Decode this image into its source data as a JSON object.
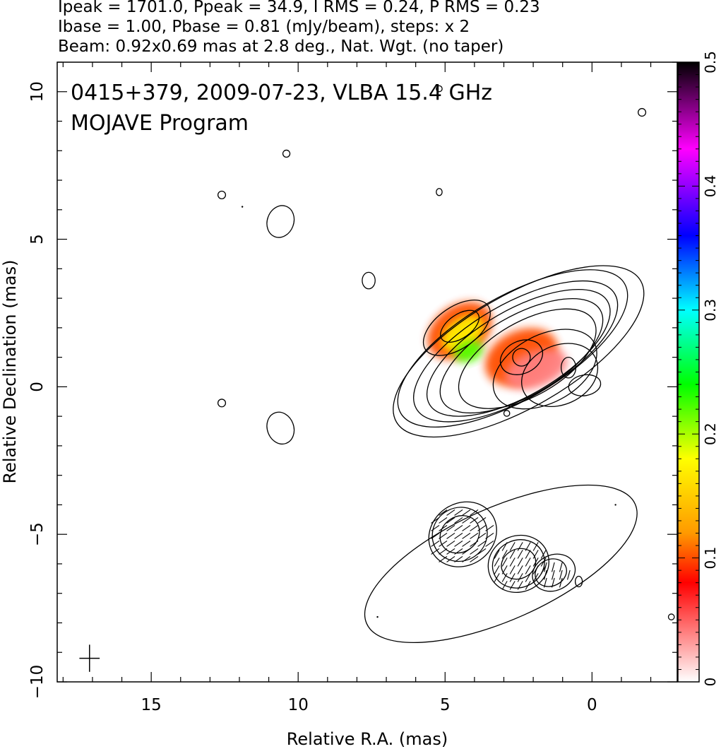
{
  "header": {
    "line1": "Ipeak = 1701.0, Ppeak = 34.9, I RMS = 0.24, P RMS = 0.23",
    "line2": "Ibase = 1.00, Pbase = 0.81 (mJy/beam), steps: x 2",
    "line3": "Beam: 0.92x0.69 mas at 2.8 deg., Nat. Wgt. (no taper)"
  },
  "chart_data": {
    "type": "contour",
    "title": "0415+379, 2009-07-23, VLBA 15.4 GHz",
    "subtitle": "MOJAVE Program",
    "xlabel": "Relative R.A. (mas)",
    "ylabel": "Relative Declination (mas)",
    "xlim": [
      18.2,
      -2.9
    ],
    "ylim": [
      -10,
      11
    ],
    "x_reversed": true,
    "x_major_ticks": [
      15,
      10,
      5,
      0
    ],
    "y_major_ticks": [
      -10,
      -5,
      0,
      5,
      10
    ],
    "x_tick_labels": [
      "15",
      "10",
      "5",
      "0"
    ],
    "y_tick_labels": [
      "−10",
      "−5",
      "0",
      "5",
      "10"
    ],
    "grid": false,
    "beam": {
      "major_mas": 0.92,
      "minor_mas": 0.69,
      "pa_deg": 2.8,
      "center": [
        17.1,
        -9.2
      ]
    },
    "colorbar": {
      "range": [
        0,
        0.5
      ],
      "ticks": [
        0,
        0.1,
        0.2,
        0.3,
        0.4,
        0.5
      ],
      "tick_labels": [
        "0",
        "0.1",
        "0.2",
        "0.3",
        "0.4",
        "0.5"
      ],
      "colors": [
        "#ffffff",
        "#ff0000",
        "#ff9900",
        "#ffff00",
        "#00ff00",
        "#00ffff",
        "#0000ff",
        "#ff00ff",
        "#000000"
      ],
      "color_stops": [
        0,
        0.16,
        0.24,
        0.36,
        0.48,
        0.6,
        0.72,
        0.86,
        1
      ]
    },
    "panels": [
      {
        "name": "total-intensity",
        "core": [
          0.2,
          0.0
        ],
        "components": [
          {
            "center": [
              2.4,
              1.0
            ],
            "angle_deg": -32
          },
          {
            "center": [
              4.6,
              2.0
            ],
            "angle_deg": -35
          }
        ],
        "contours": [
          {
            "center": [
              2.5,
              1.2
            ],
            "rx": 4.8,
            "ry": 1.9,
            "angle_deg": -30
          },
          {
            "center": [
              2.7,
              1.3
            ],
            "rx": 4.4,
            "ry": 1.75,
            "angle_deg": -30
          },
          {
            "center": [
              2.6,
              1.2
            ],
            "rx": 3.9,
            "ry": 1.6,
            "angle_deg": -30
          },
          {
            "center": [
              2.5,
              1.15
            ],
            "rx": 3.5,
            "ry": 1.45,
            "angle_deg": -30
          },
          {
            "center": [
              2.4,
              1.05
            ],
            "rx": 3.1,
            "ry": 1.35,
            "angle_deg": -30
          },
          {
            "center": [
              2.2,
              0.95
            ],
            "rx": 2.6,
            "ry": 1.25,
            "angle_deg": -30
          },
          {
            "center": [
              1.6,
              0.6
            ],
            "rx": 1.9,
            "ry": 1.15,
            "angle_deg": -28
          },
          {
            "center": [
              1.1,
              0.4
            ],
            "rx": 1.35,
            "ry": 1.0,
            "angle_deg": -25
          },
          {
            "center": [
              4.6,
              2.0
            ],
            "rx": 1.3,
            "ry": 0.7,
            "angle_deg": -35
          },
          {
            "center": [
              4.5,
              2.05
            ],
            "rx": 0.75,
            "ry": 0.4,
            "angle_deg": -35
          },
          {
            "center": [
              2.4,
              1.0
            ],
            "rx": 0.75,
            "ry": 0.55,
            "angle_deg": -25
          },
          {
            "center": [
              2.4,
              1.0
            ],
            "rx": 0.3,
            "ry": 0.3,
            "angle_deg": 0
          },
          {
            "center": [
              0.8,
              0.65
            ],
            "rx": 0.25,
            "ry": 0.35,
            "angle_deg": 0
          },
          {
            "center": [
              0.25,
              0.05
            ],
            "rx": 0.55,
            "ry": 0.35,
            "angle_deg": -10
          },
          {
            "center": [
              7.6,
              3.6
            ],
            "rx": 0.22,
            "ry": 0.28,
            "angle_deg": 0
          },
          {
            "center": [
              10.6,
              5.6
            ],
            "rx": 0.45,
            "ry": 0.55,
            "angle_deg": 20
          },
          {
            "center": [
              10.6,
              -1.4
            ],
            "rx": 0.45,
            "ry": 0.55,
            "angle_deg": -20
          },
          {
            "center": [
              12.6,
              6.5
            ],
            "rx": 0.13,
            "ry": 0.13,
            "angle_deg": 0
          },
          {
            "center": [
              12.6,
              -0.55
            ],
            "rx": 0.13,
            "ry": 0.13,
            "angle_deg": 0
          },
          {
            "center": [
              10.4,
              7.9
            ],
            "rx": 0.12,
            "ry": 0.12,
            "angle_deg": 0
          },
          {
            "center": [
              5.2,
              6.6
            ],
            "rx": 0.1,
            "ry": 0.12,
            "angle_deg": 0
          },
          {
            "center": [
              2.9,
              -0.9
            ],
            "rx": 0.1,
            "ry": 0.1,
            "angle_deg": 0
          },
          {
            "center": [
              -1.7,
              9.3
            ],
            "rx": 0.13,
            "ry": 0.13,
            "angle_deg": 0
          },
          {
            "center": [
              5.2,
              10.1
            ],
            "rx": 0.1,
            "ry": 0.1,
            "angle_deg": 0
          }
        ],
        "polarized_intensity": [
          {
            "center": [
              4.5,
              1.9
            ],
            "rx": 1.2,
            "ry": 0.85,
            "angle_deg": -35,
            "value": 0.1
          },
          {
            "center": [
              4.4,
              1.8
            ],
            "rx": 0.8,
            "ry": 0.5,
            "angle_deg": -35,
            "value": 0.17
          },
          {
            "center": [
              4.2,
              1.2
            ],
            "rx": 0.5,
            "ry": 0.35,
            "angle_deg": -20,
            "value": 0.22
          },
          {
            "center": [
              2.4,
              1.0
            ],
            "rx": 1.3,
            "ry": 0.9,
            "angle_deg": -25,
            "value": 0.1
          },
          {
            "center": [
              1.9,
              0.6
            ],
            "rx": 1.1,
            "ry": 0.6,
            "angle_deg": -20,
            "value": 0.04
          }
        ]
      },
      {
        "name": "polarization-vectors",
        "offset_dec": -6.0,
        "contours": [
          {
            "center": [
              3.1,
              -6.0
            ],
            "rx": 5.0,
            "ry": 1.9,
            "angle_deg": -24
          },
          {
            "center": [
              4.5,
              -5.0
            ],
            "rx": 0.95,
            "ry": 0.9,
            "angle_deg": -35
          },
          {
            "center": [
              4.5,
              -5.0
            ],
            "rx": 0.7,
            "ry": 0.6,
            "angle_deg": -35
          },
          {
            "center": [
              2.5,
              -6.0
            ],
            "rx": 0.9,
            "ry": 0.8,
            "angle_deg": -25
          },
          {
            "center": [
              2.5,
              -6.0
            ],
            "rx": 0.6,
            "ry": 0.5,
            "angle_deg": -25
          },
          {
            "center": [
              1.4,
              -6.3
            ],
            "rx": 0.55,
            "ry": 0.45,
            "angle_deg": -25
          },
          {
            "center": [
              0.45,
              -6.6
            ],
            "rx": 0.12,
            "ry": 0.18,
            "angle_deg": 0
          },
          {
            "center": [
              -2.7,
              -7.8
            ],
            "rx": 0.1,
            "ry": 0.1,
            "angle_deg": 0
          }
        ],
        "inner_contours": [
          {
            "center": [
              4.4,
              -5.0
            ],
            "rx": 1.2,
            "ry": 1.05,
            "angle_deg": -35
          },
          {
            "center": [
              2.5,
              -6.0
            ],
            "rx": 1.05,
            "ry": 0.95,
            "angle_deg": -25
          },
          {
            "center": [
              1.3,
              -6.3
            ],
            "rx": 0.75,
            "ry": 0.6,
            "angle_deg": -25
          }
        ],
        "evpa_regions": [
          {
            "center": [
              4.5,
              -5.0
            ],
            "rx": 1.1,
            "ry": 1.0,
            "evpa_deg": 55
          },
          {
            "center": [
              2.5,
              -6.0
            ],
            "rx": 1.0,
            "ry": 0.85,
            "evpa_deg": 30
          },
          {
            "center": [
              1.3,
              -6.3
            ],
            "rx": 0.55,
            "ry": 0.45,
            "evpa_deg": 15
          }
        ]
      }
    ],
    "noise_points": [
      [
        11.9,
        6.1
      ],
      [
        7.3,
        -7.8
      ],
      [
        -0.8,
        -4.0
      ]
    ]
  }
}
